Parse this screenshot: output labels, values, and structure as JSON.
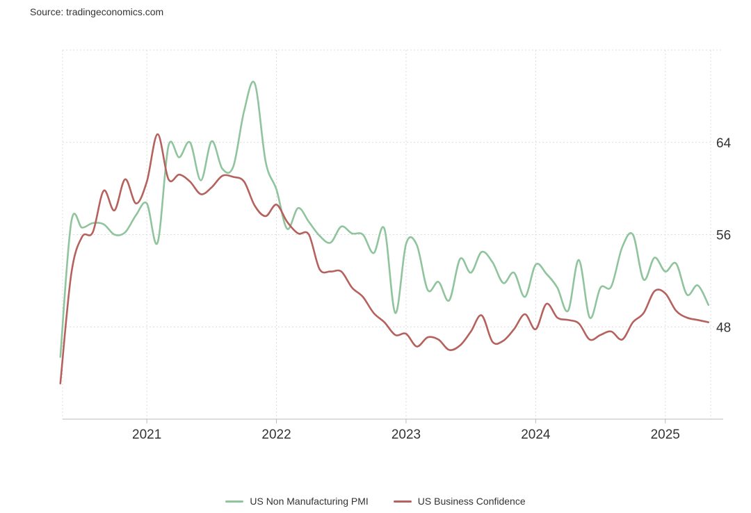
{
  "source": "Source: tradingeconomics.com",
  "chart_data": {
    "type": "line",
    "title": "",
    "xlabel": "",
    "ylabel": "",
    "xlim": [
      2020.35,
      2025.35
    ],
    "ylim": [
      40,
      72
    ],
    "x_ticks": [
      {
        "label": "2021",
        "value": 2021.0
      },
      {
        "label": "2022",
        "value": 2022.0
      },
      {
        "label": "2023",
        "value": 2023.0
      },
      {
        "label": "2024",
        "value": 2024.0
      },
      {
        "label": "2025",
        "value": 2025.0
      }
    ],
    "y_ticks": [
      {
        "label": "64",
        "value": 64
      },
      {
        "label": "56",
        "value": 56
      },
      {
        "label": "48",
        "value": 48
      }
    ],
    "grid": true,
    "legend_position": "bottom-center",
    "series": [
      {
        "name": "US Non Manufacturing PMI",
        "color": "#8fc49d",
        "x": [
          2020.333,
          2020.417,
          2020.5,
          2020.583,
          2020.667,
          2020.75,
          2020.833,
          2020.917,
          2021.0,
          2021.083,
          2021.167,
          2021.25,
          2021.333,
          2021.417,
          2021.5,
          2021.583,
          2021.667,
          2021.75,
          2021.833,
          2021.917,
          2022.0,
          2022.083,
          2022.167,
          2022.25,
          2022.333,
          2022.417,
          2022.5,
          2022.583,
          2022.667,
          2022.75,
          2022.833,
          2022.917,
          2023.0,
          2023.083,
          2023.167,
          2023.25,
          2023.333,
          2023.417,
          2023.5,
          2023.583,
          2023.667,
          2023.75,
          2023.833,
          2023.917,
          2024.0,
          2024.083,
          2024.167,
          2024.25,
          2024.333,
          2024.417,
          2024.5,
          2024.583,
          2024.667,
          2024.75,
          2024.833,
          2024.917,
          2025.0,
          2025.083,
          2025.167,
          2025.25,
          2025.333
        ],
        "values": [
          45.4,
          57.1,
          56.6,
          57.0,
          56.9,
          56.0,
          56.2,
          57.7,
          58.7,
          55.3,
          63.7,
          62.7,
          64.0,
          60.7,
          64.1,
          61.7,
          61.9,
          66.7,
          69.1,
          62.3,
          59.9,
          56.5,
          58.3,
          57.1,
          55.9,
          55.3,
          56.7,
          56.1,
          56.0,
          54.4,
          56.5,
          49.2,
          55.2,
          55.1,
          51.2,
          51.9,
          50.3,
          53.9,
          52.7,
          54.5,
          53.6,
          51.8,
          52.7,
          50.6,
          53.4,
          52.6,
          51.4,
          49.4,
          53.8,
          48.8,
          51.4,
          51.5,
          54.9,
          56.0,
          52.1,
          54.0,
          52.8,
          53.5,
          50.8,
          51.6,
          49.9
        ]
      },
      {
        "name": "US Business Confidence",
        "color": "#b5615d",
        "x": [
          2020.333,
          2020.417,
          2020.5,
          2020.583,
          2020.667,
          2020.75,
          2020.833,
          2020.917,
          2021.0,
          2021.083,
          2021.167,
          2021.25,
          2021.333,
          2021.417,
          2021.5,
          2021.583,
          2021.667,
          2021.75,
          2021.833,
          2021.917,
          2022.0,
          2022.083,
          2022.167,
          2022.25,
          2022.333,
          2022.417,
          2022.5,
          2022.583,
          2022.667,
          2022.75,
          2022.833,
          2022.917,
          2023.0,
          2023.083,
          2023.167,
          2023.25,
          2023.333,
          2023.417,
          2023.5,
          2023.583,
          2023.667,
          2023.75,
          2023.833,
          2023.917,
          2024.0,
          2024.083,
          2024.167,
          2024.25,
          2024.333,
          2024.417,
          2024.5,
          2024.583,
          2024.667,
          2024.75,
          2024.833,
          2024.917,
          2025.0,
          2025.083,
          2025.167,
          2025.25,
          2025.333
        ],
        "values": [
          43.1,
          52.6,
          55.8,
          56.2,
          59.8,
          58.1,
          60.8,
          58.7,
          60.6,
          64.7,
          60.8,
          61.2,
          60.6,
          59.5,
          60.1,
          61.1,
          61.0,
          60.6,
          58.5,
          57.6,
          58.6,
          57.1,
          56.1,
          56.0,
          53.0,
          52.8,
          52.8,
          51.4,
          50.6,
          49.2,
          48.4,
          47.3,
          47.4,
          46.3,
          47.1,
          46.9,
          46.0,
          46.4,
          47.6,
          49.0,
          46.7,
          46.8,
          47.8,
          49.1,
          47.8,
          50.0,
          48.8,
          48.6,
          48.3,
          46.9,
          47.3,
          47.6,
          46.9,
          48.4,
          49.2,
          51.1,
          50.9,
          49.4,
          48.8,
          48.6,
          48.4
        ]
      }
    ]
  },
  "legend": [
    {
      "label": "US Non Manufacturing PMI",
      "color": "#8fc49d"
    },
    {
      "label": "US Business Confidence",
      "color": "#b5615d"
    }
  ]
}
